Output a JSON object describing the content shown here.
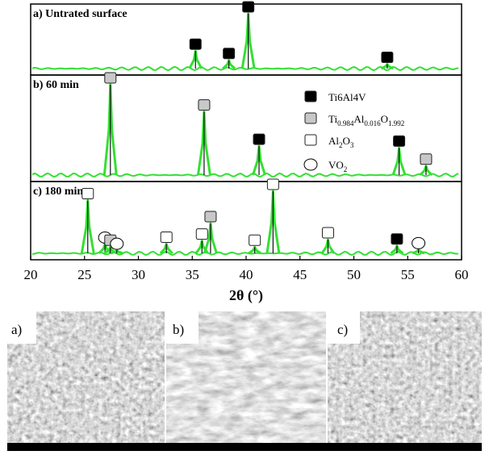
{
  "chart_data": {
    "type": "xrd-stack",
    "xlabel": "2θ (°)",
    "xlim": [
      20,
      60
    ],
    "xticks": [
      20,
      25,
      30,
      35,
      40,
      45,
      50,
      55,
      60
    ],
    "line_color": "#33e033",
    "phases": [
      {
        "name_parts": [
          "Ti6Al4V"
        ],
        "marker": "square",
        "fill": "#000000"
      },
      {
        "name_parts": [
          "Ti",
          "0.984",
          "Al",
          "0.016",
          "O",
          "1.992"
        ],
        "marker": "square",
        "fill": "#c8c8c8"
      },
      {
        "name_parts": [
          "Al",
          "2",
          "O",
          "3"
        ],
        "marker": "square",
        "fill": "#ffffff"
      },
      {
        "name_parts": [
          "VO",
          "2"
        ],
        "marker": "circle",
        "fill": "#ffffff"
      }
    ],
    "panels": [
      {
        "label": "a) Untrated surface",
        "x": [
          35.3,
          38.4,
          40.2,
          53.1
        ],
        "values": [
          32,
          15,
          100,
          8
        ],
        "phase": [
          0,
          0,
          0,
          0
        ]
      },
      {
        "label": "b) 60 min",
        "x": [
          27.4,
          36.1,
          41.2,
          54.2,
          56.7
        ],
        "values": [
          100,
          70,
          32,
          30,
          10
        ],
        "phase": [
          1,
          1,
          0,
          0,
          1
        ]
      },
      {
        "label": "c) 180 min",
        "x": [
          25.3,
          26.9,
          27.4,
          28.0,
          32.6,
          35.9,
          36.7,
          40.8,
          42.5,
          47.6,
          54.0,
          56.0
        ],
        "values": [
          85,
          15,
          10,
          5,
          15,
          20,
          48,
          10,
          100,
          22,
          12,
          6
        ],
        "phase": [
          2,
          3,
          1,
          3,
          2,
          2,
          1,
          2,
          2,
          2,
          0,
          3
        ]
      }
    ]
  },
  "images": [
    {
      "label": "a)"
    },
    {
      "label": "b)"
    },
    {
      "label": "c)"
    }
  ]
}
